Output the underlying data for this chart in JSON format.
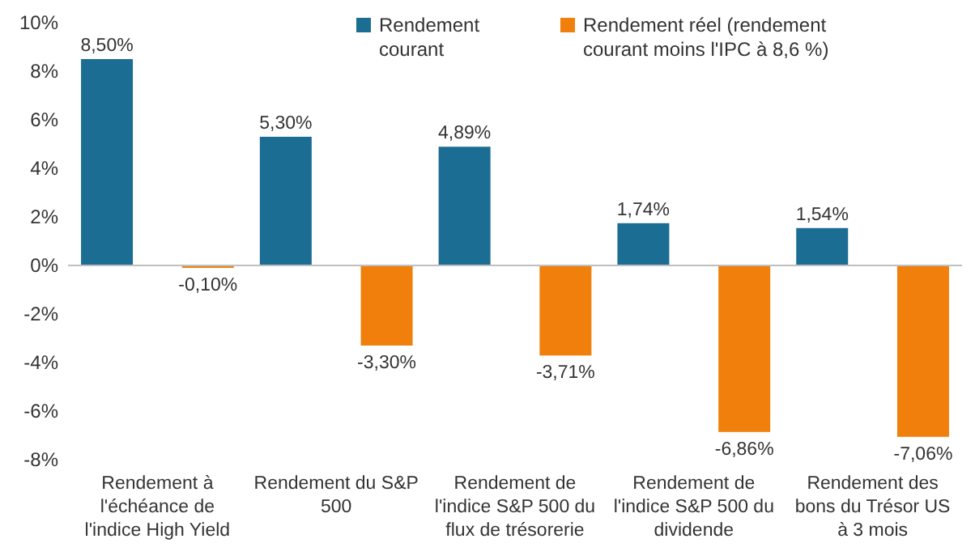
{
  "chart_data": {
    "type": "bar",
    "categories": [
      "Rendement à l'échéance de l'indice High Yield",
      "Rendement du S&P 500",
      "Rendement de l'indice S&P 500 du flux de trésorerie",
      "Rendement de l'indice S&P 500 du dividende",
      "Rendement des bons du Trésor US à 3 mois"
    ],
    "series": [
      {
        "name": "Rendement courant",
        "color": "#1b6d93",
        "values": [
          8.5,
          5.3,
          4.89,
          1.74,
          1.54
        ],
        "value_labels": [
          "8,50%",
          "5,30%",
          "4,89%",
          "1,74%",
          "1,54%"
        ]
      },
      {
        "name": "Rendement réel (rendement courant moins l'IPC à 8,6 %)",
        "color": "#f07f0c",
        "values": [
          -0.1,
          -3.3,
          -3.71,
          -6.86,
          -7.06
        ],
        "value_labels": [
          "-0,10%",
          "-3,30%",
          "-3,71%",
          "-6,86%",
          "-7,06%"
        ]
      }
    ],
    "ylim": [
      -8,
      10
    ],
    "yticks": [
      {
        "value": -8,
        "label": "-8%"
      },
      {
        "value": -6,
        "label": "-6%"
      },
      {
        "value": -4,
        "label": "-4%"
      },
      {
        "value": -2,
        "label": "-2%"
      },
      {
        "value": 0,
        "label": "0%"
      },
      {
        "value": 2,
        "label": "2%"
      },
      {
        "value": 4,
        "label": "4%"
      },
      {
        "value": 6,
        "label": "6%"
      },
      {
        "value": 8,
        "label": "8%"
      },
      {
        "value": 10,
        "label": "10%"
      }
    ],
    "legend": "top"
  }
}
